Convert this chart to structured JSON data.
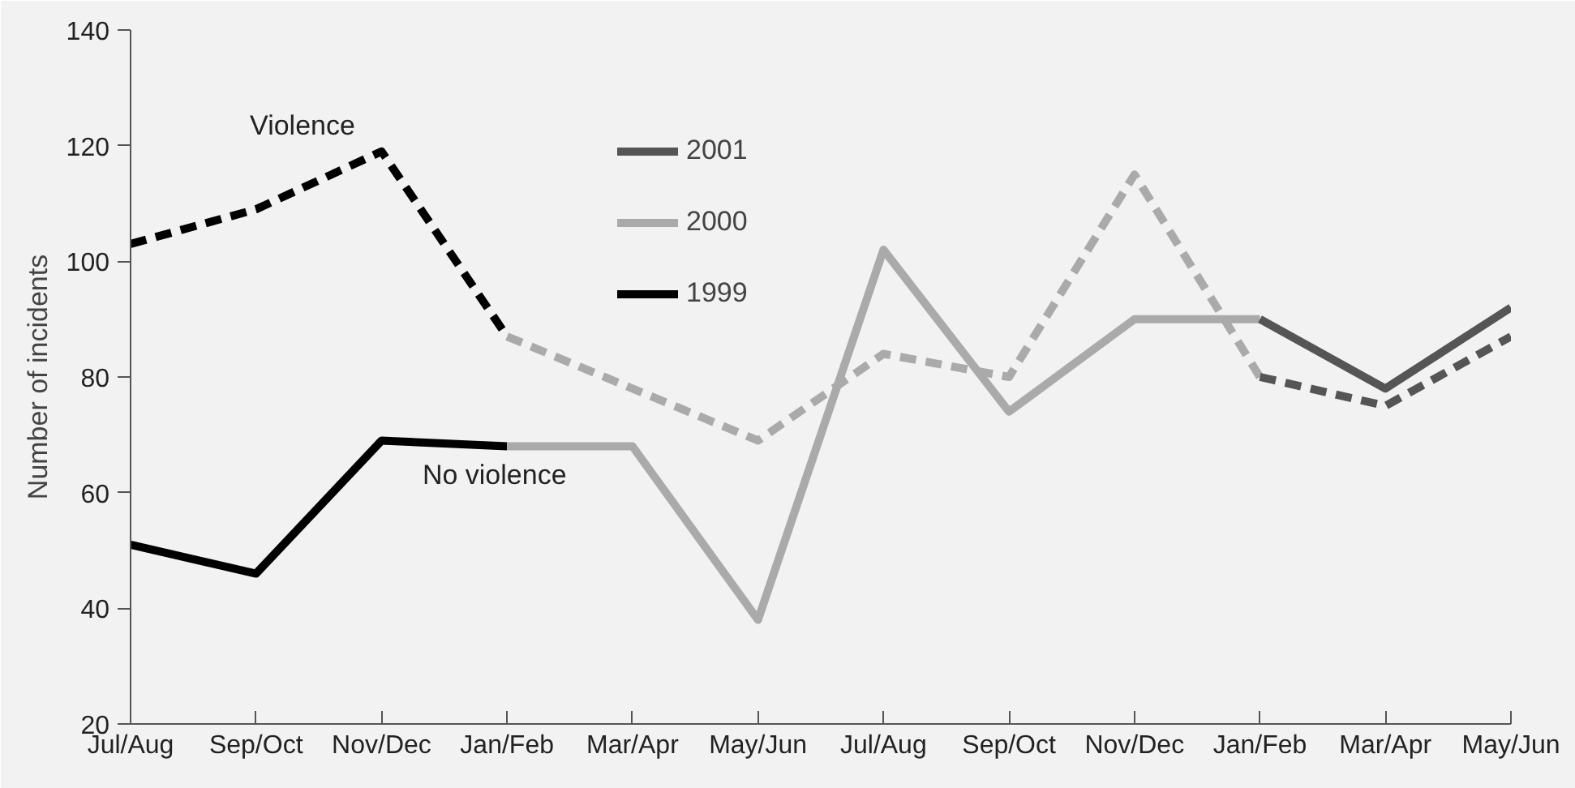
{
  "chart_data": {
    "type": "line",
    "ylabel": "Number of incidents",
    "categories": [
      "Jul/Aug",
      "Sep/Oct",
      "Nov/Dec",
      "Jan/Feb",
      "Mar/Apr",
      "May/Jun",
      "Jul/Aug",
      "Sep/Oct",
      "Nov/Dec",
      "Jan/Feb",
      "Mar/Apr",
      "May/Jun"
    ],
    "ylim": [
      20,
      140
    ],
    "yticks": [
      20,
      40,
      60,
      80,
      100,
      120,
      140
    ],
    "grid": false,
    "legend": "top",
    "marker": "none",
    "series": [
      {
        "name": "1999",
        "color": "#000000",
        "line_style": "solid",
        "values": [
          51,
          46,
          69,
          68,
          null,
          null,
          null,
          null,
          null,
          null,
          null,
          null
        ]
      },
      {
        "name": "2000",
        "color": "#aaaaaa",
        "line_style": "solid",
        "values": [
          null,
          null,
          null,
          68,
          68,
          38,
          102,
          74,
          90,
          90,
          null,
          null
        ]
      },
      {
        "name": "2001",
        "color": "#555555",
        "line_style": "solid",
        "values": [
          null,
          null,
          null,
          null,
          null,
          null,
          null,
          null,
          null,
          90,
          78,
          92
        ]
      },
      {
        "color": "#000000",
        "line_style": "dashed",
        "values": [
          103,
          109,
          119,
          87,
          null,
          null,
          null,
          null,
          null,
          null,
          null,
          null
        ]
      },
      {
        "color": "#aaaaaa",
        "line_style": "dashed",
        "values": [
          null,
          null,
          null,
          87,
          78,
          69,
          84,
          80,
          115,
          80,
          null,
          null
        ]
      },
      {
        "color": "#555555",
        "line_style": "dashed",
        "values": [
          null,
          null,
          null,
          null,
          null,
          null,
          null,
          null,
          null,
          80,
          75,
          87
        ]
      }
    ],
    "annotations": [
      "Violence",
      "No violence"
    ]
  }
}
